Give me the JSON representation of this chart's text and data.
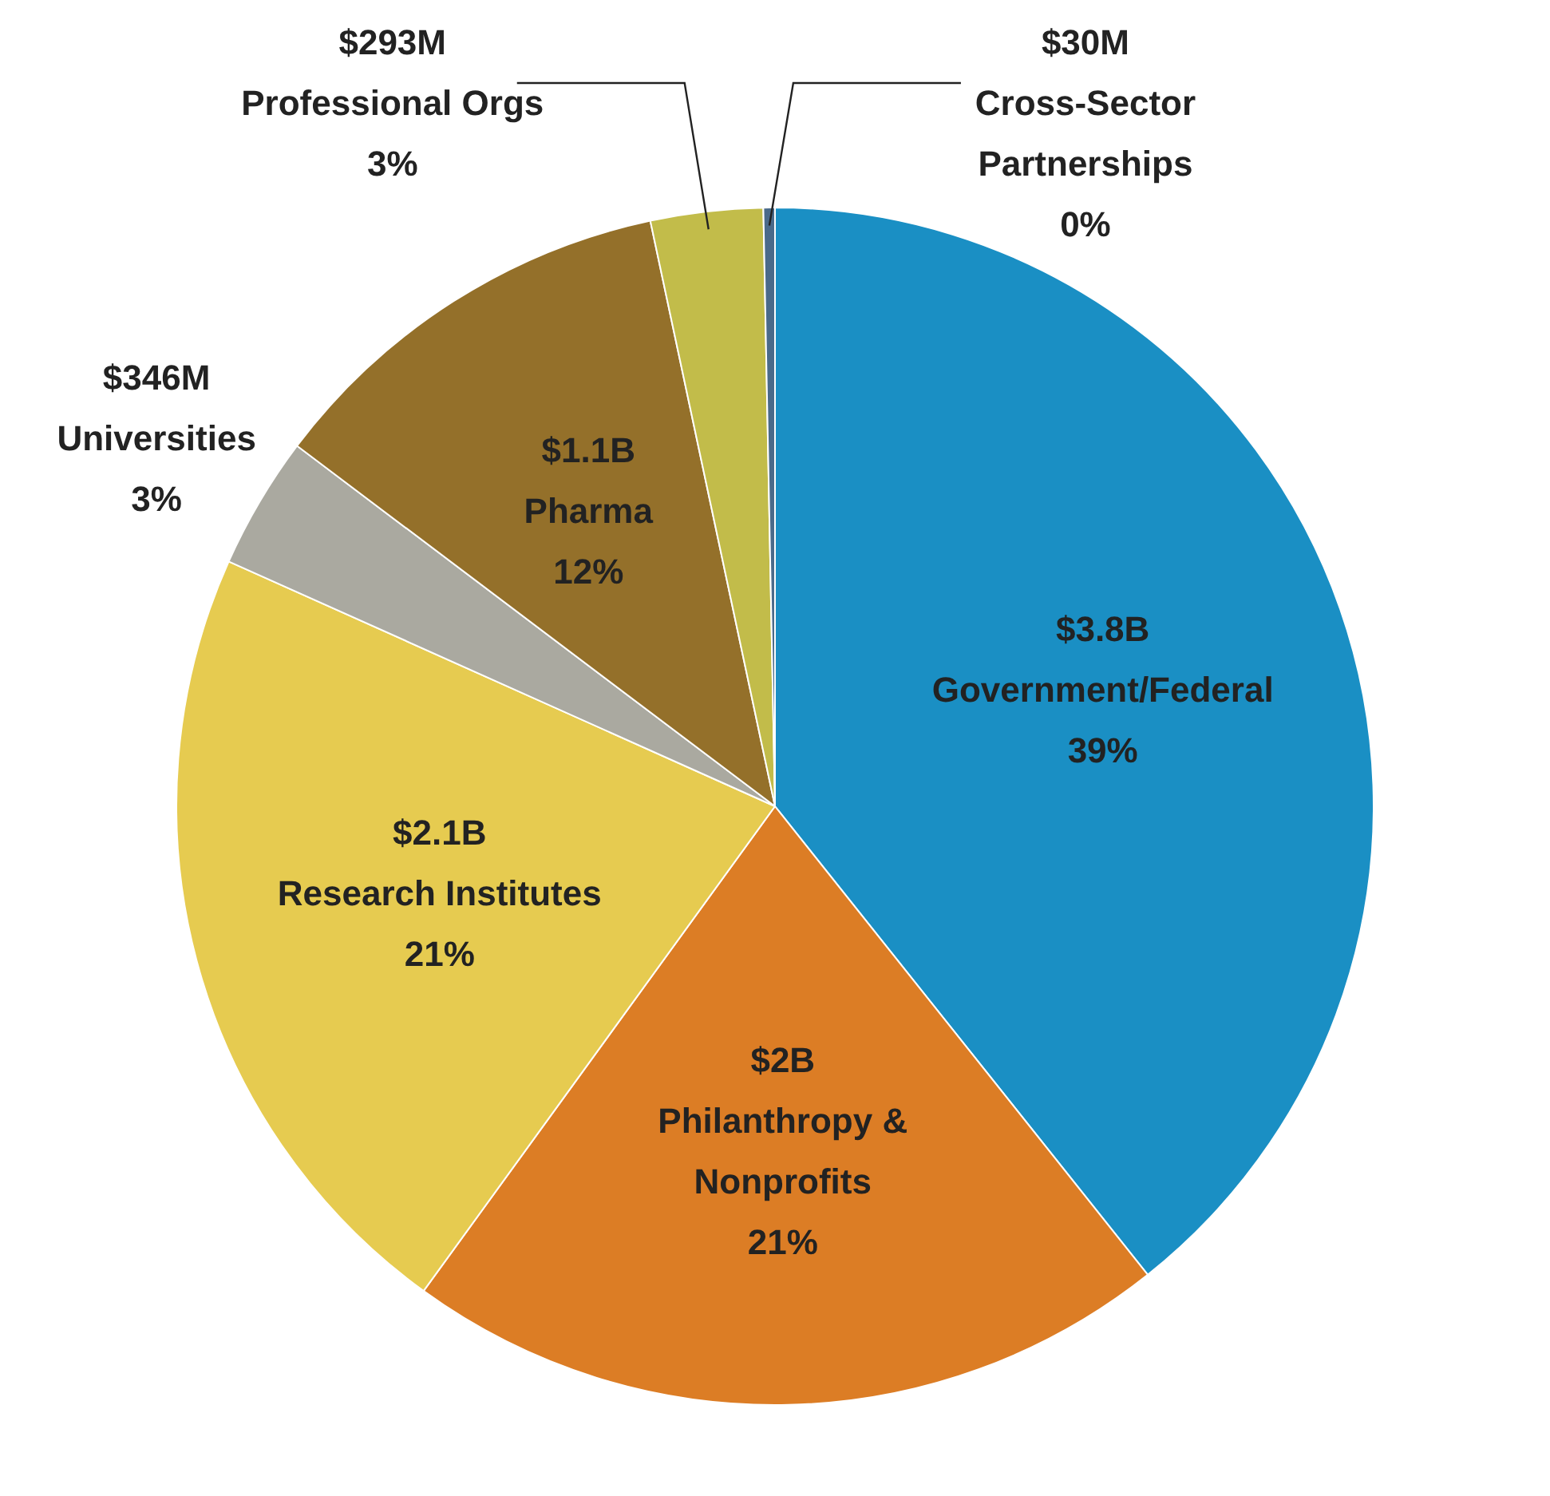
{
  "chart_data": {
    "type": "pie",
    "categories": [
      "Government/Federal",
      "Philanthropy & Nonprofits",
      "Research Institutes",
      "Universities",
      "Pharma",
      "Professional Orgs",
      "Cross-Sector Partnerships"
    ],
    "values": [
      3800000000,
      2000000000,
      2100000000,
      346000000,
      1100000000,
      293000000,
      30000000
    ],
    "value_labels": [
      "$3.8B",
      "$2B",
      "$2.1B",
      "$346M",
      "$1.1B",
      "$293M",
      "$30M"
    ],
    "annotations": [
      "39%",
      "21%",
      "21%",
      "3%",
      "12%",
      "3%",
      "0%"
    ],
    "colors": [
      "#1a8fc4",
      "#dc7d25",
      "#e6cb50",
      "#aaa9a0",
      "#94702a",
      "#c2bc4a",
      "#4a6a8a"
    ],
    "legend": false
  }
}
